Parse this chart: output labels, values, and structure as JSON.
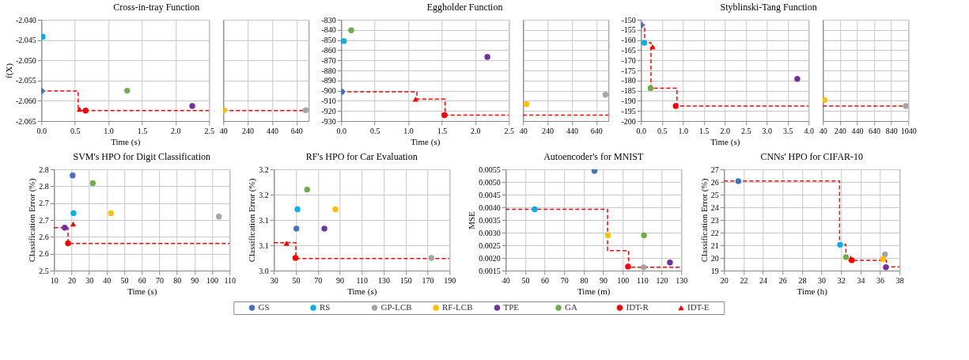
{
  "chart_data": [
    {
      "type": "scatter",
      "title": "Cross-in-tray Function",
      "xlabel": "Time (s)",
      "ylabel": "f(X)",
      "xlim": [
        0,
        2.5
      ],
      "xticks": [
        {
          "value": 0,
          "label": "0.0"
        },
        {
          "value": 0.5,
          "label": "0.5"
        },
        {
          "value": 1,
          "label": "1.0"
        },
        {
          "value": 1.5,
          "label": "1.5"
        },
        {
          "value": 2,
          "label": "2.0"
        },
        {
          "value": 2.5,
          "label": "2.5"
        }
      ],
      "ylim": [
        -2.065,
        -2.04
      ],
      "yticks": [
        {
          "value": -2.065,
          "label": "-2.065"
        },
        {
          "value": -2.06,
          "label": "-2.060"
        },
        {
          "value": -2.055,
          "label": "-2.055"
        },
        {
          "value": -2.05,
          "label": "-2.050"
        },
        {
          "value": -2.045,
          "label": "-2.045"
        },
        {
          "value": -2.04,
          "label": "-2.040"
        }
      ],
      "grid": true,
      "legend": "bottom",
      "series": [
        {
          "type": "step",
          "color": "#ff0000",
          "line_style": "dashed",
          "x": [
            0,
            0.55,
            2.5
          ],
          "values": [
            -2.0576,
            -2.0624,
            -2.0624
          ]
        },
        {
          "name": "GS",
          "color": "#4472c4",
          "marker": "circle",
          "x": [
            0.0
          ],
          "values": [
            -2.0576
          ]
        },
        {
          "name": "RS",
          "color": "#00b0f0",
          "marker": "circle",
          "x": [
            0.02
          ],
          "values": [
            -2.0442
          ]
        },
        {
          "name": "TPE",
          "color": "#7030a0",
          "marker": "circle",
          "x": [
            2.25
          ],
          "values": [
            -2.0613
          ]
        },
        {
          "name": "GA",
          "color": "#70ad47",
          "marker": "circle",
          "x": [
            1.28
          ],
          "values": [
            -2.0575
          ]
        },
        {
          "name": "IDT-R",
          "color": "#ff0000",
          "marker": "circle",
          "x": [
            0.66
          ],
          "values": [
            -2.0624
          ]
        },
        {
          "name": "IDT-E",
          "color": "#ff0000",
          "marker": "triangle",
          "x": [
            0.57
          ],
          "values": [
            -2.0621
          ]
        }
      ]
    },
    {
      "type": "scatter",
      "xlim": [
        40,
        740
      ],
      "xticks": [
        40,
        240,
        440,
        640
      ],
      "ylim": [
        -2.065,
        -2.04
      ],
      "yticks": [
        -2.065,
        -2.06,
        -2.055,
        -2.05,
        -2.045,
        -2.04
      ],
      "grid": true,
      "legend": "bottom",
      "tick_labels": "x",
      "series": [
        {
          "type": "step",
          "color": "#ff0000",
          "line_style": "dashed",
          "x": [
            40,
            740
          ],
          "values": [
            -2.0624,
            -2.0624
          ]
        },
        {
          "name": "GP-LCB",
          "color": "#a5a5a5",
          "marker": "circle",
          "x": [
            715
          ],
          "values": [
            -2.0623
          ]
        },
        {
          "name": "RF-LCB",
          "color": "#ffc000",
          "marker": "circle",
          "x": [
            45
          ],
          "values": [
            -2.0623
          ]
        }
      ]
    },
    {
      "type": "scatter",
      "title": "Eggholder Function",
      "xlabel": "Time (s)",
      "xlim": [
        0,
        2.5
      ],
      "xticks": [
        {
          "value": 0,
          "label": "0.0"
        },
        {
          "value": 0.5,
          "label": "0.5"
        },
        {
          "value": 1,
          "label": "1.0"
        },
        {
          "value": 1.5,
          "label": "1.5"
        },
        {
          "value": 2,
          "label": "2.0"
        },
        {
          "value": 2.5,
          "label": "2.5"
        }
      ],
      "ylim": [
        -930,
        -830
      ],
      "yticks": [
        -930,
        -920,
        -910,
        -900,
        -890,
        -880,
        -870,
        -860,
        -850,
        -840,
        -830
      ],
      "grid": true,
      "legend": "bottom",
      "series": [
        {
          "type": "step",
          "color": "#ff0000",
          "line_style": "dashed",
          "x": [
            0,
            1.13,
            1.55,
            2.5
          ],
          "values": [
            -901,
            -908.4,
            -924.1,
            -924.1
          ]
        },
        {
          "name": "GS",
          "color": "#4472c4",
          "marker": "circle",
          "x": [
            0.01
          ],
          "values": [
            -901
          ]
        },
        {
          "name": "RS",
          "color": "#00b0f0",
          "marker": "circle",
          "x": [
            0.04
          ],
          "values": [
            -851
          ]
        },
        {
          "name": "TPE",
          "color": "#7030a0",
          "marker": "circle",
          "x": [
            2.18
          ],
          "values": [
            -866.7
          ]
        },
        {
          "name": "GA",
          "color": "#70ad47",
          "marker": "circle",
          "x": [
            0.15
          ],
          "values": [
            -840.4
          ]
        },
        {
          "name": "IDT-R",
          "color": "#ff0000",
          "marker": "circle",
          "x": [
            1.54
          ],
          "values": [
            -924.1
          ]
        },
        {
          "name": "IDT-E",
          "color": "#ff0000",
          "marker": "triangle",
          "x": [
            1.11
          ],
          "values": [
            -908.4
          ]
        }
      ]
    },
    {
      "type": "scatter",
      "xlim": [
        40,
        740
      ],
      "xticks": [
        40,
        240,
        440,
        640
      ],
      "ylim": [
        -930,
        -830
      ],
      "yticks": [
        -930,
        -920,
        -910,
        -900,
        -890,
        -880,
        -870,
        -860,
        -850,
        -840,
        -830
      ],
      "grid": true,
      "legend": "bottom",
      "tick_labels": "x",
      "series": [
        {
          "type": "step",
          "color": "#ff0000",
          "line_style": "dashed",
          "x": [
            40,
            740
          ],
          "values": [
            -924.1,
            -924.1
          ]
        },
        {
          "name": "GP-LCB",
          "color": "#a5a5a5",
          "marker": "circle",
          "x": [
            715
          ],
          "values": [
            -904
          ]
        },
        {
          "name": "RF-LCB",
          "color": "#ffc000",
          "marker": "circle",
          "x": [
            68
          ],
          "values": [
            -913.3
          ]
        }
      ]
    },
    {
      "type": "scatter",
      "title": "Styblinski-Tang Function",
      "xlabel": "Time (s)",
      "xlim": [
        0,
        4
      ],
      "xticks": [
        {
          "value": 0,
          "label": "0.0"
        },
        {
          "value": 0.5,
          "label": "0.5"
        },
        {
          "value": 1,
          "label": "1.0"
        },
        {
          "value": 1.5,
          "label": "1.5"
        },
        {
          "value": 2,
          "label": "2.0"
        },
        {
          "value": 2.5,
          "label": "2.5"
        },
        {
          "value": 3,
          "label": "3.0"
        },
        {
          "value": 3.5,
          "label": "3.5"
        },
        {
          "value": 4,
          "label": "4.0"
        }
      ],
      "ylim": [
        -200,
        -150
      ],
      "yticks": [
        -200,
        -195,
        -190,
        -185,
        -180,
        -175,
        -170,
        -165,
        -160,
        -155,
        -150
      ],
      "grid": true,
      "legend": "bottom",
      "series": [
        {
          "type": "step",
          "color": "#ff0000",
          "line_style": "dashed",
          "x": [
            0,
            0.09,
            0.24,
            0.86,
            4
          ],
          "values": [
            -152.6,
            -161.3,
            -183.8,
            -192.6,
            -192.6
          ]
        },
        {
          "name": "GS",
          "color": "#4472c4",
          "marker": "circle",
          "x": [
            0.0
          ],
          "values": [
            -152.6
          ]
        },
        {
          "name": "RS",
          "color": "#00b0f0",
          "marker": "circle",
          "x": [
            0.08
          ],
          "values": [
            -161.3
          ]
        },
        {
          "name": "TPE",
          "color": "#7030a0",
          "marker": "circle",
          "x": [
            3.73
          ],
          "values": [
            -179.2
          ]
        },
        {
          "name": "GA",
          "color": "#70ad47",
          "marker": "circle",
          "x": [
            0.23
          ],
          "values": [
            -183.8
          ]
        },
        {
          "name": "IDT-R",
          "color": "#ff0000",
          "marker": "circle",
          "x": [
            0.83
          ],
          "values": [
            -192.6
          ]
        },
        {
          "name": "IDT-E",
          "color": "#ff0000",
          "marker": "triangle",
          "x": [
            0.28
          ],
          "values": [
            -163.3
          ]
        }
      ]
    },
    {
      "type": "scatter",
      "xlim": [
        40,
        1040
      ],
      "xticks": [
        40,
        240,
        440,
        640,
        840,
        1040
      ],
      "ylim": [
        -200,
        -150
      ],
      "yticks": [
        -200,
        -195,
        -190,
        -185,
        -180,
        -175,
        -170,
        -165,
        -160,
        -155,
        -150
      ],
      "grid": true,
      "legend": "bottom",
      "tick_labels": "x",
      "series": [
        {
          "type": "step",
          "color": "#ff0000",
          "line_style": "dashed",
          "x": [
            40,
            1040
          ],
          "values": [
            -192.6,
            -192.6
          ]
        },
        {
          "name": "GP-LCB",
          "color": "#a5a5a5",
          "marker": "circle",
          "x": [
            1012
          ],
          "values": [
            -192.6
          ]
        },
        {
          "name": "RF-LCB",
          "color": "#ffc000",
          "marker": "circle",
          "x": [
            59
          ],
          "values": [
            -189.6
          ]
        }
      ]
    },
    {
      "type": "scatter",
      "title": "SVM's HPO for Digit Classification",
      "xlabel": "Time (s)",
      "ylabel": "Classification Error (%)",
      "xlim": [
        10,
        110
      ],
      "xticks": [
        10,
        20,
        30,
        40,
        50,
        60,
        70,
        80,
        90,
        100,
        110
      ],
      "ylim": [
        2.5,
        2.8
      ],
      "yticks": [
        2.5,
        {
          "value": 2.55,
          "label": "2.6"
        },
        2.6,
        {
          "value": 2.65,
          "label": "2.7"
        },
        2.7,
        {
          "value": 2.75,
          "label": "2.8"
        },
        2.8
      ],
      "grid": true,
      "legend": "bottom",
      "series": [
        {
          "type": "step",
          "color": "#ff0000",
          "line_style": "dashed",
          "x": [
            10,
            18,
            110
          ],
          "values": [
            2.627,
            2.58,
            2.58
          ]
        },
        {
          "name": "GS",
          "color": "#4472c4",
          "marker": "circle",
          "x": [
            20.6
          ],
          "values": [
            2.782
          ]
        },
        {
          "name": "RS",
          "color": "#00b0f0",
          "marker": "circle",
          "x": [
            21.1
          ],
          "values": [
            2.67
          ]
        },
        {
          "name": "GP-LCB",
          "color": "#a5a5a5",
          "marker": "circle",
          "x": [
            103.9
          ],
          "values": [
            2.66
          ]
        },
        {
          "name": "RF-LCB",
          "color": "#ffc000",
          "marker": "circle",
          "x": [
            42.4
          ],
          "values": [
            2.67
          ]
        },
        {
          "name": "TPE",
          "color": "#7030a0",
          "marker": "circle",
          "x": [
            16.1
          ],
          "values": [
            2.627
          ]
        },
        {
          "name": "GA",
          "color": "#70ad47",
          "marker": "circle",
          "x": [
            32.1
          ],
          "values": [
            2.759
          ]
        },
        {
          "name": "IDT-R",
          "color": "#ff0000",
          "marker": "circle",
          "x": [
            18
          ],
          "values": [
            2.581
          ]
        },
        {
          "name": "IDT-E",
          "color": "#ff0000",
          "marker": "triangle",
          "x": [
            20.9
          ],
          "values": [
            2.638
          ]
        }
      ]
    },
    {
      "type": "scatter",
      "title": "RF's HPO for Car Evaluation",
      "xlabel": "Time (s)",
      "ylabel": "Classification Error (%)",
      "xlim": [
        30,
        190
      ],
      "xticks": [
        30,
        50,
        70,
        90,
        110,
        130,
        150,
        170,
        190
      ],
      "ylim": [
        3.0,
        3.2
      ],
      "yticks": [
        {
          "value": 3.0,
          "label": "3.0"
        },
        {
          "value": 3.05,
          "label": "3.1"
        },
        3.1,
        {
          "value": 3.15,
          "label": "3.2"
        },
        3.2
      ],
      "grid": true,
      "legend": "bottom",
      "series": [
        {
          "type": "step",
          "color": "#ff0000",
          "line_style": "dashed",
          "x": [
            30,
            50,
            190
          ],
          "values": [
            3.055,
            3.024,
            3.024
          ]
        },
        {
          "name": "GS",
          "color": "#4472c4",
          "marker": "circle",
          "x": [
            50.5
          ],
          "values": [
            3.083
          ]
        },
        {
          "name": "RS",
          "color": "#00b0f0",
          "marker": "circle",
          "x": [
            51.5
          ],
          "values": [
            3.121
          ]
        },
        {
          "name": "GP-LCB",
          "color": "#a5a5a5",
          "marker": "circle",
          "x": [
            173.5
          ],
          "values": [
            3.025
          ]
        },
        {
          "name": "RF-LCB",
          "color": "#ffc000",
          "marker": "circle",
          "x": [
            86
          ],
          "values": [
            3.121
          ]
        },
        {
          "name": "TPE",
          "color": "#7030a0",
          "marker": "circle",
          "x": [
            76
          ],
          "values": [
            3.083
          ]
        },
        {
          "name": "GA",
          "color": "#70ad47",
          "marker": "circle",
          "x": [
            60.3
          ],
          "values": [
            3.16
          ]
        },
        {
          "name": "IDT-R",
          "color": "#ff0000",
          "marker": "circle",
          "x": [
            49.6
          ],
          "values": [
            3.025
          ]
        },
        {
          "name": "IDT-E",
          "color": "#ff0000",
          "marker": "triangle",
          "x": [
            41.5
          ],
          "values": [
            3.054
          ]
        }
      ]
    },
    {
      "type": "scatter",
      "title": "Autoencoder's for MNIST",
      "xlabel": "Time (m)",
      "ylabel": "MSE",
      "xlim": [
        40,
        130
      ],
      "xticks": [
        40,
        50,
        60,
        70,
        80,
        90,
        100,
        110,
        120,
        130
      ],
      "ylim": [
        0.0015,
        0.0055
      ],
      "yticks": [
        0.0015,
        {
          "value": 0.002,
          "label": "0.0020"
        },
        0.0025,
        {
          "value": 0.003,
          "label": "0.0030"
        },
        0.0035,
        {
          "value": 0.004,
          "label": "0.0040"
        },
        0.0045,
        {
          "value": 0.005,
          "label": "0.0050"
        },
        0.0055
      ],
      "grid": true,
      "legend": "bottom",
      "series": [
        {
          "type": "step",
          "color": "#ff0000",
          "line_style": "dashed",
          "x": [
            40,
            92.2,
            103,
            130
          ],
          "values": [
            0.00392,
            0.00229,
            0.00163,
            0.00163
          ]
        },
        {
          "name": "GS",
          "color": "#4472c4",
          "marker": "circle",
          "x": [
            85.5
          ],
          "values": [
            0.00544
          ]
        },
        {
          "name": "RS",
          "color": "#00b0f0",
          "marker": "circle",
          "x": [
            54.9
          ],
          "values": [
            0.00392
          ]
        },
        {
          "name": "GP-LCB",
          "color": "#a5a5a5",
          "marker": "circle",
          "x": [
            110.7
          ],
          "values": [
            0.00163
          ]
        },
        {
          "name": "RF-LCB",
          "color": "#ffc000",
          "marker": "circle",
          "x": [
            92.4
          ],
          "values": [
            0.00289
          ]
        },
        {
          "name": "TPE",
          "color": "#7030a0",
          "marker": "circle",
          "x": [
            124.2
          ],
          "values": [
            0.00182
          ]
        },
        {
          "name": "GA",
          "color": "#70ad47",
          "marker": "circle",
          "x": [
            110.9
          ],
          "values": [
            0.00289
          ]
        },
        {
          "name": "IDT-R",
          "color": "#ff0000",
          "marker": "circle",
          "x": [
            102.7
          ],
          "values": [
            0.00166
          ]
        }
      ]
    },
    {
      "type": "scatter",
      "title": "CNNs' HPO for CIFAR-10",
      "xlabel": "Time (h)",
      "ylabel": "Classification Error (%)",
      "xlim": [
        20,
        38
      ],
      "xticks": [
        20,
        22,
        24,
        26,
        28,
        30,
        32,
        34,
        36,
        38
      ],
      "ylim": [
        19,
        27
      ],
      "yticks": [
        19,
        20,
        21,
        22,
        23,
        24,
        25,
        26,
        27
      ],
      "grid": true,
      "legend": "bottom",
      "series": [
        {
          "type": "step",
          "color": "#ff0000",
          "line_style": "dashed",
          "x": [
            20,
            31.85,
            32.5,
            33.0,
            36.65,
            38
          ],
          "values": [
            26.08,
            21.07,
            20.05,
            19.82,
            19.3,
            19.3
          ]
        },
        {
          "name": "GS",
          "color": "#4472c4",
          "marker": "circle",
          "x": [
            21.47
          ],
          "values": [
            26.06
          ]
        },
        {
          "name": "RS",
          "color": "#00b0f0",
          "marker": "circle",
          "x": [
            31.9
          ],
          "values": [
            21.04
          ]
        },
        {
          "name": "GP-LCB",
          "color": "#a5a5a5",
          "marker": "circle",
          "x": [
            36.5
          ],
          "values": [
            20.28
          ]
        },
        {
          "name": "RF-LCB",
          "color": "#ffc000",
          "marker": "circle",
          "x": [
            36.3
          ],
          "values": [
            19.91
          ]
        },
        {
          "name": "TPE",
          "color": "#7030a0",
          "marker": "circle",
          "x": [
            36.6
          ],
          "values": [
            19.27
          ]
        },
        {
          "name": "GA",
          "color": "#70ad47",
          "marker": "circle",
          "x": [
            32.5
          ],
          "values": [
            20.07
          ]
        },
        {
          "name": "IDT-R",
          "color": "#ff0000",
          "marker": "circle",
          "x": [
            33.1
          ],
          "values": [
            19.82
          ]
        },
        {
          "name": "IDT-E",
          "color": "#ff0000",
          "marker": "triangle",
          "x": [
            33.0
          ],
          "values": [
            19.97
          ]
        }
      ]
    }
  ]
}
